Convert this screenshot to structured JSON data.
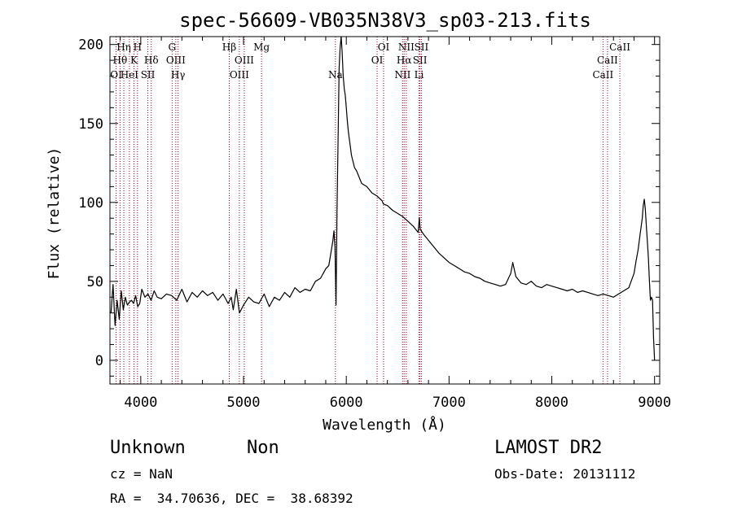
{
  "chart_data": {
    "type": "line",
    "title": "spec-56609-VB035N38V3_sp03-213.fits",
    "xlabel": "Wavelength (Å)",
    "ylabel": "Flux (relative)",
    "xlim": [
      3700,
      9050
    ],
    "ylim": [
      -15,
      205
    ],
    "xticks": [
      4000,
      5000,
      6000,
      7000,
      8000,
      9000
    ],
    "yticks": [
      0,
      50,
      100,
      150,
      200
    ],
    "grid": false,
    "line_color": "#000000",
    "marker_color": "#a0001e",
    "series": [
      {
        "x": [
          3710,
          3730,
          3750,
          3770,
          3790,
          3810,
          3830,
          3850,
          3870,
          3890,
          3910,
          3930,
          3950,
          3970,
          3990,
          4010,
          4040,
          4070,
          4100,
          4130,
          4160,
          4200,
          4250,
          4300,
          4350,
          4400,
          4450,
          4500,
          4550,
          4600,
          4650,
          4700,
          4750,
          4800,
          4850,
          4880,
          4900,
          4930,
          4960,
          5000,
          5050,
          5100,
          5150,
          5200,
          5250,
          5300,
          5350,
          5400,
          5450,
          5500,
          5550,
          5600,
          5650,
          5700,
          5750,
          5800,
          5830,
          5850,
          5870,
          5880,
          5890,
          5900,
          5910,
          5920,
          5930,
          5940,
          5950,
          5960,
          5970,
          5980,
          5990,
          6000,
          6010,
          6020,
          6050,
          6080,
          6100,
          6150,
          6200,
          6250,
          6300,
          6350,
          6360,
          6400,
          6450,
          6500,
          6550,
          6600,
          6650,
          6700,
          6710,
          6720,
          6750,
          6800,
          6850,
          6900,
          6950,
          7000,
          7050,
          7100,
          7150,
          7200,
          7250,
          7300,
          7350,
          7400,
          7450,
          7500,
          7550,
          7600,
          7620,
          7650,
          7700,
          7750,
          7800,
          7850,
          7900,
          7950,
          8000,
          8050,
          8100,
          8150,
          8200,
          8250,
          8300,
          8350,
          8400,
          8450,
          8500,
          8550,
          8600,
          8650,
          8700,
          8750,
          8800,
          8820,
          8840,
          8860,
          8880,
          8890,
          8900,
          8910,
          8920,
          8930,
          8940,
          8950,
          8960,
          8970,
          8980,
          8990,
          9000
        ],
        "y": [
          30,
          48,
          22,
          38,
          26,
          44,
          32,
          40,
          35,
          37,
          38,
          36,
          41,
          34,
          36,
          45,
          40,
          42,
          38,
          44,
          40,
          39,
          42,
          41,
          38,
          45,
          37,
          43,
          40,
          44,
          41,
          43,
          38,
          42,
          36,
          40,
          32,
          45,
          30,
          35,
          40,
          37,
          36,
          42,
          34,
          40,
          38,
          43,
          40,
          46,
          43,
          45,
          44,
          50,
          52,
          58,
          60,
          68,
          76,
          82,
          72,
          35,
          95,
          140,
          185,
          198,
          205,
          195,
          180,
          172,
          168,
          160,
          152,
          145,
          130,
          122,
          120,
          112,
          110,
          106,
          104,
          101,
          99,
          98,
          95,
          93,
          91,
          88,
          85,
          81,
          90,
          83,
          80,
          76,
          72,
          68,
          65,
          62,
          60,
          58,
          56,
          55,
          53,
          52,
          50,
          49,
          48,
          47,
          48,
          55,
          62,
          53,
          49,
          48,
          50,
          47,
          46,
          48,
          47,
          46,
          45,
          44,
          45,
          43,
          44,
          43,
          42,
          41,
          42,
          41,
          40,
          42,
          44,
          46,
          55,
          63,
          70,
          80,
          90,
          98,
          102,
          96,
          85,
          75,
          65,
          50,
          38,
          40,
          38,
          15,
          0
        ]
      }
    ],
    "line_markers": [
      {
        "label": "OI",
        "wavelength": 3760,
        "row": 3
      },
      {
        "label": "Hθ",
        "wavelength": 3798,
        "row": 2
      },
      {
        "label": "Hη",
        "wavelength": 3835,
        "row": 1
      },
      {
        "label": "HeI",
        "wavelength": 3889,
        "row": 3
      },
      {
        "label": "K",
        "wavelength": 3934,
        "row": 2
      },
      {
        "label": "H",
        "wavelength": 3968,
        "row": 1
      },
      {
        "label": "SII",
        "wavelength": 4069,
        "row": 3
      },
      {
        "label": "Hδ",
        "wavelength": 4102,
        "row": 2
      },
      {
        "label": "G",
        "wavelength": 4305,
        "row": 1
      },
      {
        "label": "OIII",
        "wavelength": 4341,
        "row": 2
      },
      {
        "label": "Hγ",
        "wavelength": 4363,
        "row": 3
      },
      {
        "label": "Hβ",
        "wavelength": 4861,
        "row": 1
      },
      {
        "label": "OIII",
        "wavelength": 4959,
        "row": 3
      },
      {
        "label": "OIII",
        "wavelength": 5007,
        "row": 2
      },
      {
        "label": "Mg",
        "wavelength": 5175,
        "row": 1
      },
      {
        "label": "Na",
        "wavelength": 5894,
        "row": 3
      },
      {
        "label": "OI",
        "wavelength": 6300,
        "row": 2
      },
      {
        "label": "OI",
        "wavelength": 6363,
        "row": 1
      },
      {
        "label": "NII",
        "wavelength": 6548,
        "row": 3
      },
      {
        "label": "Hα",
        "wavelength": 6563,
        "row": 2
      },
      {
        "label": "NII",
        "wavelength": 6584,
        "row": 1
      },
      {
        "label": "SII",
        "wavelength": 6717,
        "row": 2
      },
      {
        "label": "Li",
        "wavelength": 6708,
        "row": 3
      },
      {
        "label": "SII",
        "wavelength": 6731,
        "row": 1
      },
      {
        "label": "CaII",
        "wavelength": 8498,
        "row": 3
      },
      {
        "label": "CaII",
        "wavelength": 8542,
        "row": 2
      },
      {
        "label": "CaII",
        "wavelength": 8662,
        "row": 1
      }
    ]
  },
  "footer": {
    "class_label": "Unknown",
    "subclass_label": "Non",
    "survey": "LAMOST DR2",
    "cz": "cz = NaN",
    "obs_date": "Obs-Date: 20131112",
    "coords": "RA =  34.70636, DEC =  38.68392"
  }
}
